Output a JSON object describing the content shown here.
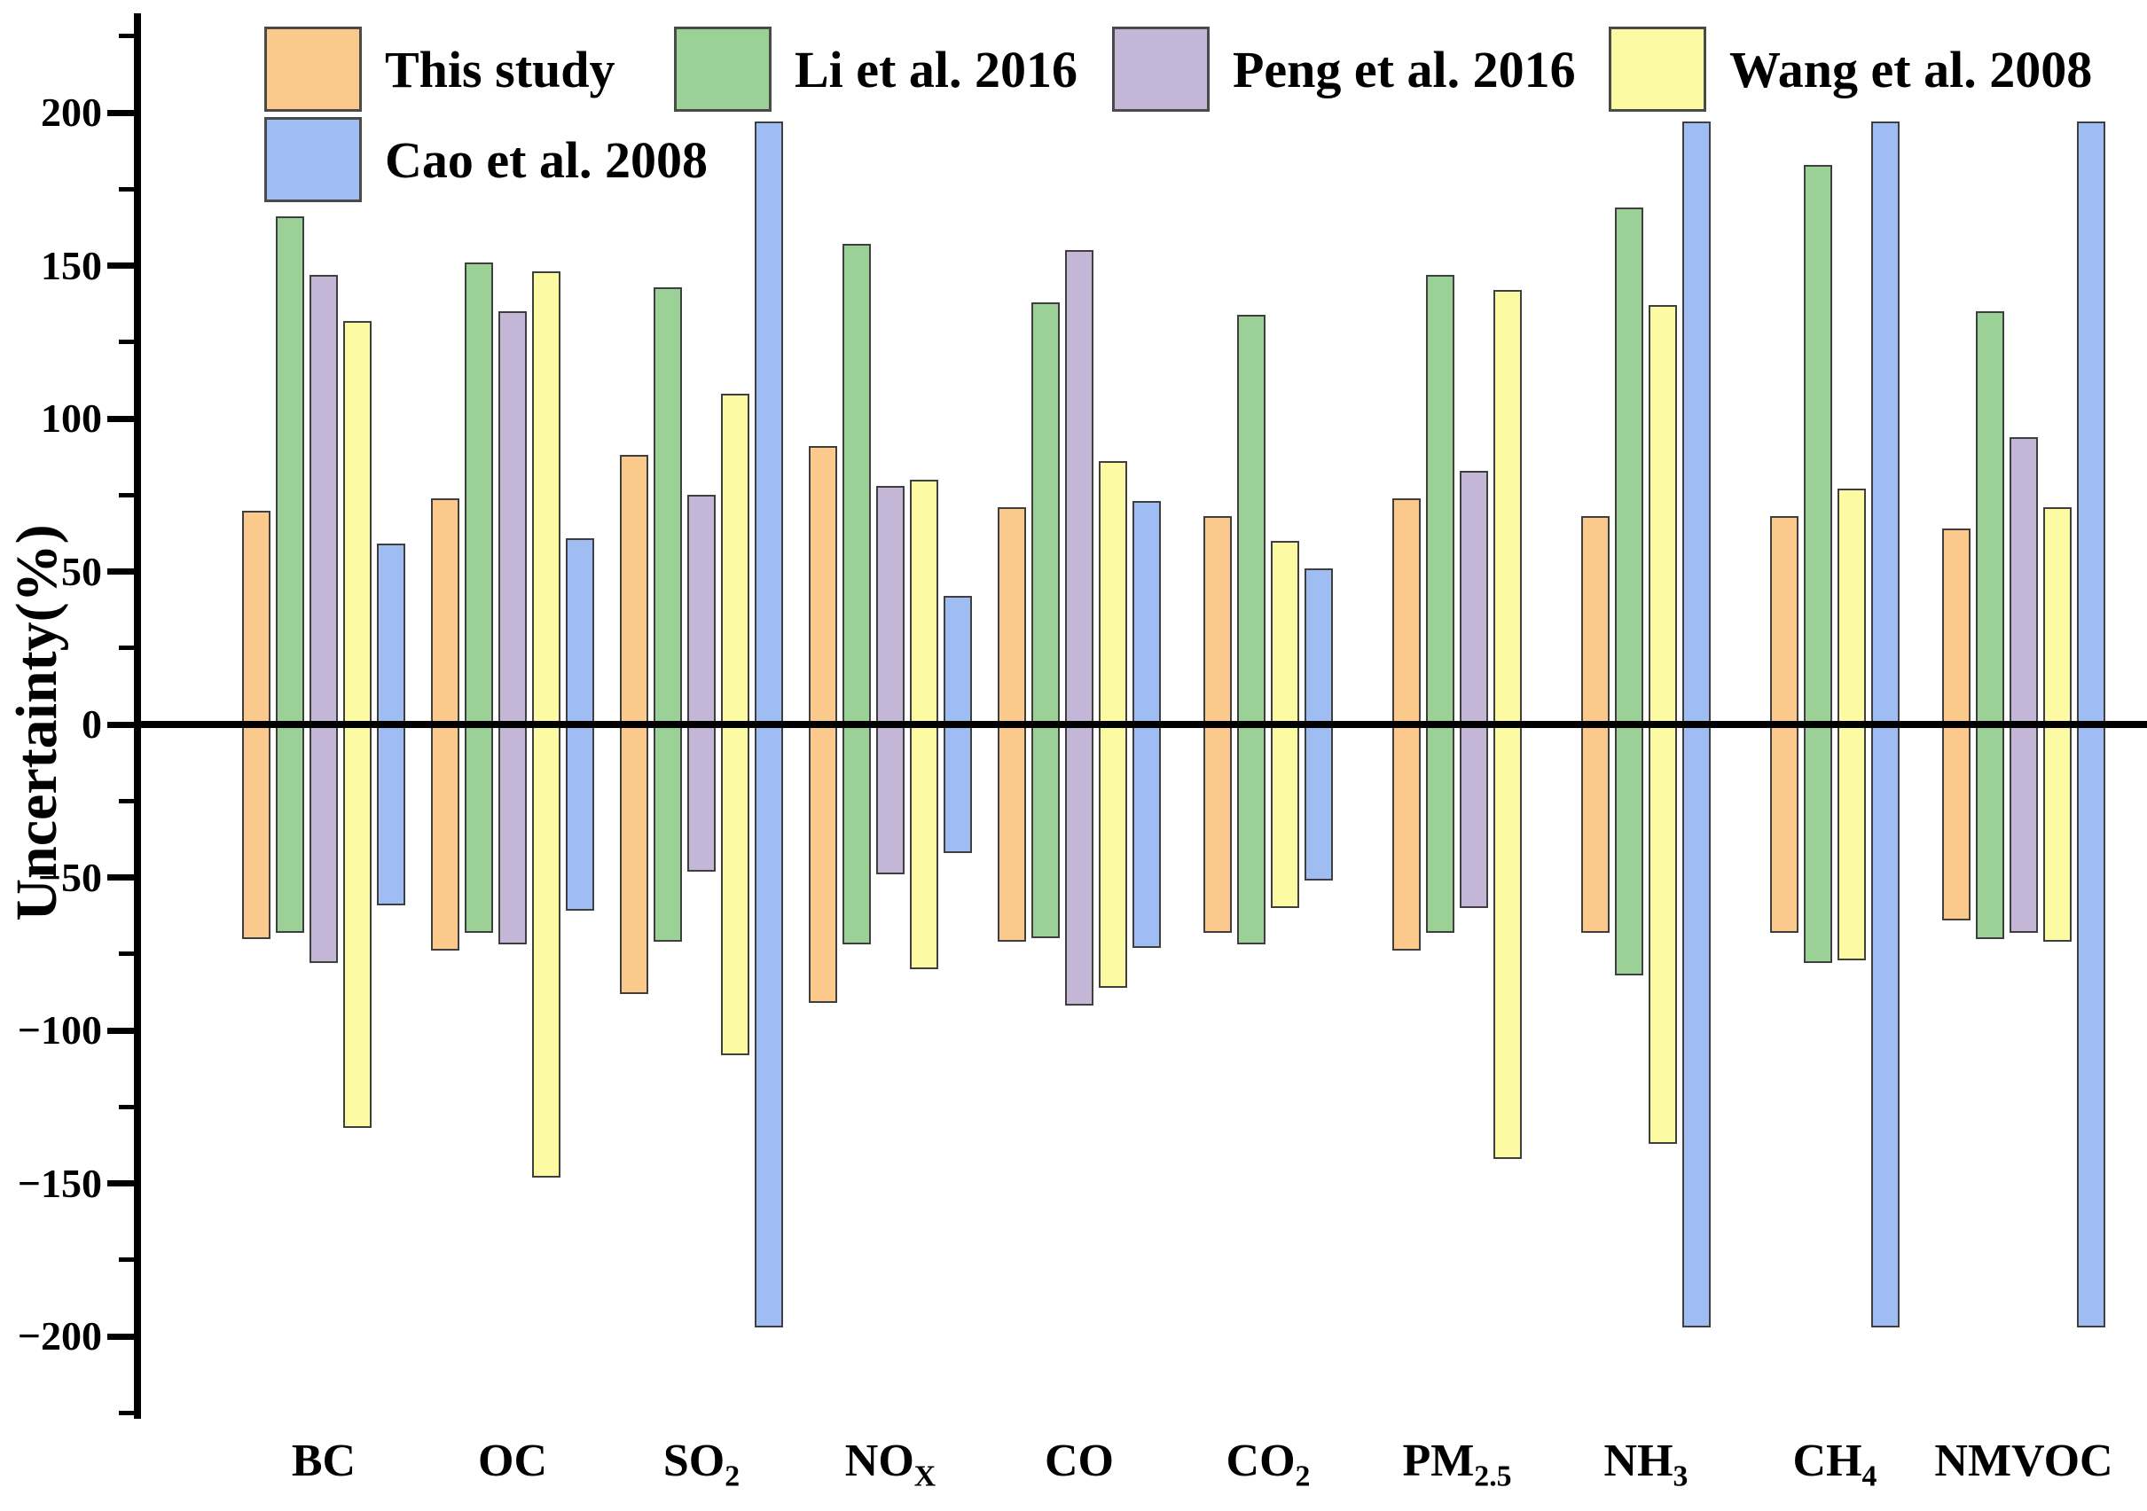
{
  "chart_data": {
    "type": "bar",
    "subtype": "range-bars-crossing-zero",
    "title": "",
    "xlabel": "",
    "ylabel": "Uncertainty(%)",
    "ylim": [
      -230,
      230
    ],
    "yticks_major": [
      -200,
      -150,
      -100,
      -50,
      0,
      50,
      100,
      150,
      200
    ],
    "ytick_minor_step": 25,
    "grid": "off",
    "legend_position": "top-left, two rows, no frame",
    "minus_sign": "−",
    "categories": [
      {
        "main": "BC",
        "sub": ""
      },
      {
        "main": "OC",
        "sub": ""
      },
      {
        "main": "SO",
        "sub": "2"
      },
      {
        "main": "NO",
        "sub": "X"
      },
      {
        "main": "CO",
        "sub": ""
      },
      {
        "main": "CO",
        "sub": "2"
      },
      {
        "main": "PM",
        "sub": "2.5"
      },
      {
        "main": "NH",
        "sub": "3"
      },
      {
        "main": "CH",
        "sub": "4"
      },
      {
        "main": "NMVOC",
        "sub": ""
      }
    ],
    "series": [
      {
        "name": "This study",
        "color": "#FBC98B",
        "values": [
          [
            -70,
            70
          ],
          [
            -74,
            74
          ],
          [
            -88,
            88
          ],
          [
            -91,
            91
          ],
          [
            -71,
            71
          ],
          [
            -68,
            68
          ],
          [
            -74,
            74
          ],
          [
            -68,
            68
          ],
          [
            -68,
            68
          ],
          [
            -64,
            64
          ]
        ]
      },
      {
        "name": "Li et al. 2016",
        "color": "#9BD096",
        "values": [
          [
            -68,
            166
          ],
          [
            -68,
            151
          ],
          [
            -71,
            143
          ],
          [
            -72,
            157
          ],
          [
            -70,
            138
          ],
          [
            -72,
            134
          ],
          [
            -68,
            147
          ],
          [
            -82,
            169
          ],
          [
            -78,
            183
          ],
          [
            -70,
            135
          ]
        ]
      },
      {
        "name": "Peng et al. 2016",
        "color": "#C4B6D6",
        "values": [
          [
            -78,
            147
          ],
          [
            -72,
            135
          ],
          [
            -48,
            75
          ],
          [
            -49,
            78
          ],
          [
            -92,
            155
          ],
          null,
          [
            -60,
            83
          ],
          null,
          null,
          [
            -68,
            94
          ]
        ]
      },
      {
        "name": "Wang et al. 2008",
        "color": "#FCFBA3",
        "values": [
          [
            -132,
            132
          ],
          [
            -148,
            148
          ],
          [
            -108,
            108
          ],
          [
            -80,
            80
          ],
          [
            -86,
            86
          ],
          [
            -60,
            60
          ],
          [
            -142,
            142
          ],
          [
            -137,
            137
          ],
          [
            -77,
            77
          ],
          [
            -71,
            71
          ]
        ]
      },
      {
        "name": "Cao et al. 2008",
        "color": "#9FBDF3",
        "values": [
          [
            -59,
            59
          ],
          [
            -61,
            61
          ],
          [
            -197,
            197
          ],
          [
            -42,
            42
          ],
          [
            -73,
            73
          ],
          [
            -51,
            51
          ],
          null,
          [
            -197,
            197
          ],
          [
            -197,
            197
          ],
          [
            -197,
            197
          ]
        ]
      }
    ]
  }
}
